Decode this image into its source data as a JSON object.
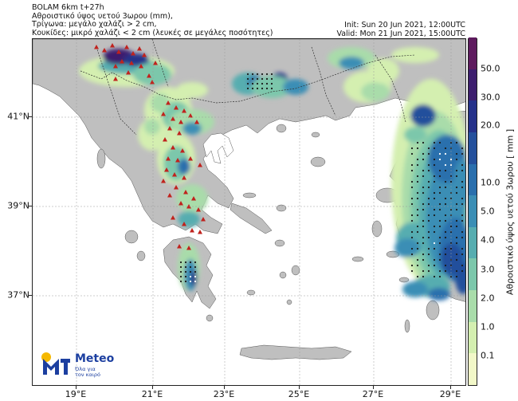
{
  "header": {
    "line1": "BOLAM 6km t+27h",
    "line2": "Αθροιστικό ύψος υετού 3ωρου (mm),",
    "line3": "Τρίγωνα: μεγάλο χαλάζι > 2 cm,",
    "line4": "Κουκίδες: μικρό χαλάζι < 2 cm (λευκές σε μεγάλες ποσότητες)",
    "init": "Init: Sun 20 Jun 2021, 12:00UTC",
    "valid": "Valid: Mon 21 Jun 2021, 15:00UTC"
  },
  "axes": {
    "x_ticks": [
      "19°E",
      "21°E",
      "23°E",
      "25°E",
      "27°E",
      "29°E"
    ],
    "y_ticks": [
      "41°N",
      "39°N",
      "37°N"
    ]
  },
  "colorbar": {
    "title": "Αθροιστικό ύψος υετού 3ωρου [ mm ]",
    "labels": [
      "50.0",
      "30.0",
      "20.0",
      "10.0",
      "5.0",
      "4.0",
      "3.0",
      "2.0",
      "1.0",
      "0.1"
    ],
    "colors": [
      "#f2f8c8",
      "#d4efb0",
      "#a9dcaa",
      "#7cc7ab",
      "#57adb0",
      "#3b8eb5",
      "#2a6fad",
      "#24509c",
      "#25318a",
      "#3d1e6e",
      "#5e1b5e"
    ]
  },
  "map": {
    "sea_color": "#ffffff",
    "land_color": "#bfbfbf",
    "triangle_color": "#c0221d",
    "dot_color": "#1a1a1a"
  },
  "logo": {
    "name": "Meteo",
    "tagline_1": "Όλα για",
    "tagline_2": "τον καιρό"
  }
}
